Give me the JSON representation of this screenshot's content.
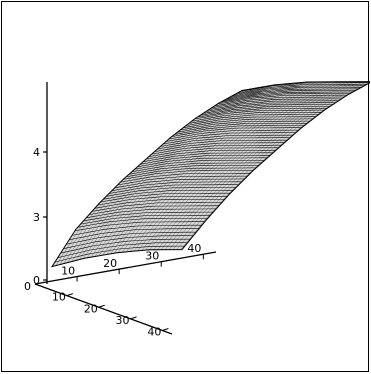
{
  "chart_data": {
    "type": "surface3d",
    "title": "",
    "xlabel": "",
    "ylabel": "",
    "zlabel": "",
    "x_axis": {
      "ticks": [
        "10",
        "20",
        "30",
        "40"
      ],
      "range": [
        0,
        40
      ]
    },
    "y_axis": {
      "ticks": [
        "10",
        "20",
        "30",
        "40"
      ],
      "range": [
        0,
        40
      ]
    },
    "z_axis": {
      "ticks": [
        "0",
        "3",
        "4"
      ],
      "range": [
        0,
        4.8
      ]
    },
    "origin_labels": [
      "0",
      "0"
    ],
    "surface": {
      "description_of_values": "z heights sampled along the surface rows",
      "row_parameter": [
        0,
        5,
        10,
        15,
        20,
        25,
        30,
        35,
        40
      ],
      "col_parameter": [
        0,
        10,
        20,
        30,
        40
      ],
      "z": [
        [
          0.2,
          0.6,
          0.9,
          1.1,
          1.2
        ],
        [
          1.3,
          1.6,
          1.8,
          1.9,
          2.0
        ],
        [
          2.0,
          2.3,
          2.5,
          2.6,
          2.7
        ],
        [
          2.6,
          2.9,
          3.1,
          3.2,
          3.3
        ],
        [
          3.1,
          3.4,
          3.6,
          3.7,
          3.8
        ],
        [
          3.6,
          3.9,
          4.1,
          4.2,
          4.3
        ],
        [
          4.0,
          4.3,
          4.5,
          4.6,
          4.7
        ],
        [
          4.3,
          4.6,
          4.8,
          4.9,
          5.0
        ],
        [
          4.5,
          4.8,
          5.0,
          5.1,
          5.2
        ]
      ]
    },
    "colors": {
      "axis": "#000000",
      "mesh": "#000000",
      "background": "#ffffff"
    },
    "grid": false,
    "legend": "none"
  }
}
